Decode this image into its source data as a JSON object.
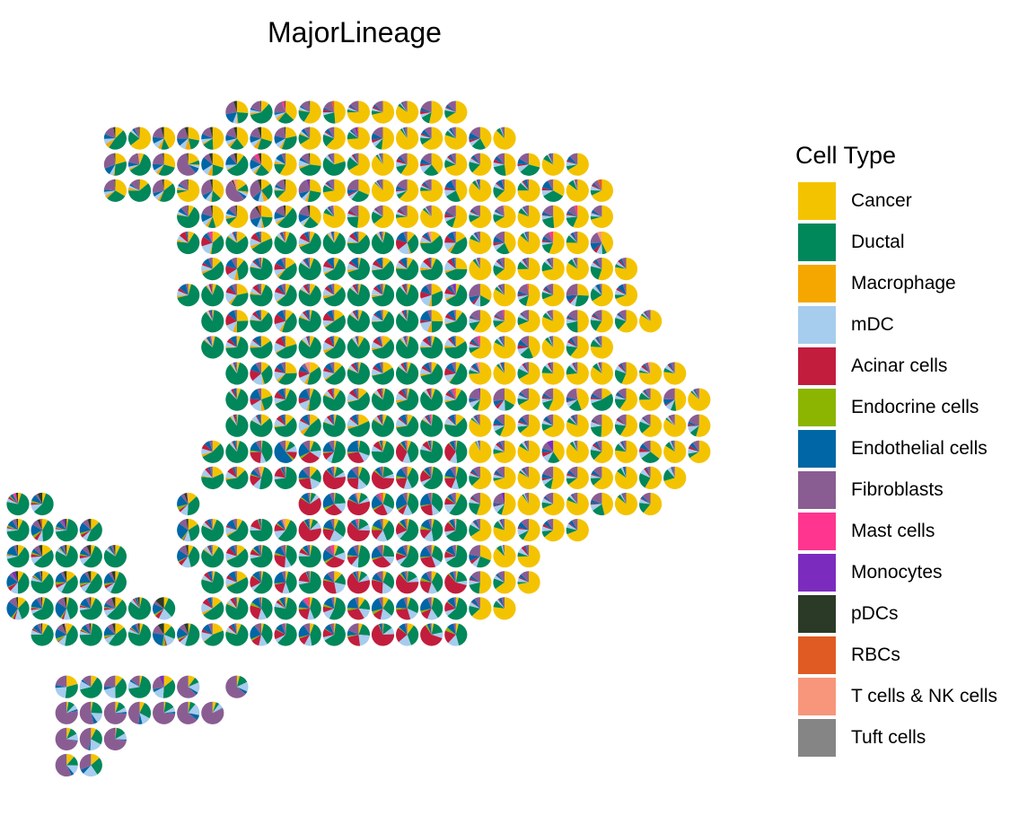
{
  "chart_data": {
    "type": "scatter",
    "subtype": "spatial-scatterpie",
    "title": "MajorLineage",
    "xlabel": "",
    "ylabel": "",
    "grid": false,
    "axes_visible": false,
    "legend_position": "right",
    "legend": {
      "title": "Cell Type",
      "entries": [
        {
          "label": "Cancer",
          "color": "#F4C300"
        },
        {
          "label": "Ductal",
          "color": "#00875A"
        },
        {
          "label": "Macrophage",
          "color": "#F5A700"
        },
        {
          "label": "mDC",
          "color": "#A6CCEE"
        },
        {
          "label": "Acinar cells",
          "color": "#C21D3D"
        },
        {
          "label": "Endocrine cells",
          "color": "#8BB500"
        },
        {
          "label": "Endothelial cells",
          "color": "#0066A5"
        },
        {
          "label": "Fibroblasts",
          "color": "#8A5D92"
        },
        {
          "label": "Mast cells",
          "color": "#FF3590"
        },
        {
          "label": "Monocytes",
          "color": "#7B2CBF"
        },
        {
          "label": "pDCs",
          "color": "#2A3A26"
        },
        {
          "label": "RBCs",
          "color": "#E05B23"
        },
        {
          "label": "T cells & NK cells",
          "color": "#F7967A"
        },
        {
          "label": "Tuft cells",
          "color": "#858585"
        }
      ]
    },
    "spot_rows": [
      {
        "row": 0,
        "spans": [
          [
            9,
            18
          ]
        ]
      },
      {
        "row": 1,
        "spans": [
          [
            4,
            20
          ]
        ]
      },
      {
        "row": 2,
        "spans": [
          [
            4,
            23
          ]
        ]
      },
      {
        "row": 3,
        "spans": [
          [
            4,
            24
          ]
        ]
      },
      {
        "row": 4,
        "spans": [
          [
            7,
            24
          ]
        ]
      },
      {
        "row": 5,
        "spans": [
          [
            7,
            24
          ]
        ]
      },
      {
        "row": 6,
        "spans": [
          [
            8,
            25
          ]
        ]
      },
      {
        "row": 7,
        "spans": [
          [
            7,
            25
          ]
        ]
      },
      {
        "row": 8,
        "spans": [
          [
            8,
            26
          ]
        ]
      },
      {
        "row": 9,
        "spans": [
          [
            8,
            24
          ]
        ]
      },
      {
        "row": 10,
        "spans": [
          [
            9,
            27
          ]
        ]
      },
      {
        "row": 11,
        "spans": [
          [
            9,
            28
          ]
        ]
      },
      {
        "row": 12,
        "spans": [
          [
            9,
            28
          ]
        ]
      },
      {
        "row": 13,
        "spans": [
          [
            8,
            28
          ]
        ]
      },
      {
        "row": 14,
        "spans": [
          [
            8,
            27
          ]
        ]
      },
      {
        "row": 15,
        "spans": [
          [
            0,
            1
          ],
          [
            7,
            7
          ],
          [
            12,
            26
          ]
        ]
      },
      {
        "row": 16,
        "spans": [
          [
            0,
            3
          ],
          [
            7,
            23
          ]
        ]
      },
      {
        "row": 17,
        "spans": [
          [
            0,
            4
          ],
          [
            7,
            21
          ]
        ]
      },
      {
        "row": 18,
        "spans": [
          [
            0,
            4
          ],
          [
            8,
            21
          ]
        ]
      },
      {
        "row": 19,
        "spans": [
          [
            0,
            6
          ],
          [
            8,
            20
          ]
        ]
      },
      {
        "row": 20,
        "spans": [
          [
            1,
            7
          ],
          [
            8,
            18
          ]
        ]
      },
      {
        "row": 22,
        "spans": [
          [
            2,
            7
          ],
          [
            9,
            9
          ]
        ]
      },
      {
        "row": 23,
        "spans": [
          [
            2,
            8
          ]
        ]
      },
      {
        "row": 24,
        "spans": [
          [
            2,
            4
          ]
        ]
      },
      {
        "row": 25,
        "spans": [
          [
            2,
            3
          ]
        ]
      }
    ],
    "spot_composition_note": "each spot is a pie of the cell-type proportions; dominant types: Ductal (left/center), Cancer (top and right), Acinar cells (lower center), Fibroblasts (lower-left cluster)"
  }
}
